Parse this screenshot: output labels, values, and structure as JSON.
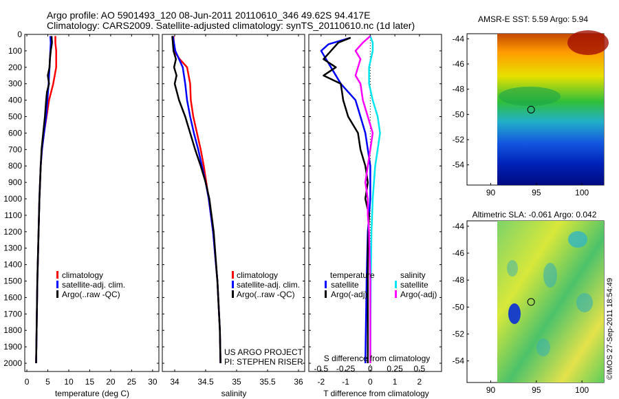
{
  "header": {
    "line1": "Argo profile: AO 5901493_120 08-Jun-2011 20110610_346 49.62S 94.417E",
    "line2": "Climatology: CARS2009. Satellite-adjusted climatology: synTS_20110610.nc (1d later)"
  },
  "credit": "©IMOS 27-Sep-2011 18:54:49",
  "colors": {
    "climatology": "#ff0000",
    "satellite": "#0000ff",
    "argo": "#000000",
    "sal_satellite": "#00e5ee",
    "sal_argo": "#ff00ff"
  },
  "chart_data": [
    {
      "id": "temperature",
      "type": "line",
      "xlabel": "temperature (deg C)",
      "ylabel": "",
      "xlim": [
        -0.5,
        31.5
      ],
      "ylim": [
        2050,
        0
      ],
      "xticks": [
        0,
        5,
        10,
        15,
        20,
        25,
        30
      ],
      "yticks": [
        0,
        100,
        200,
        300,
        400,
        500,
        600,
        700,
        800,
        900,
        1000,
        1100,
        1200,
        1300,
        1400,
        1500,
        1600,
        1700,
        1800,
        1900,
        2000
      ],
      "legend": [
        "climatology",
        "satellite-adj. clim.",
        "Argo(..raw -QC)"
      ],
      "series": [
        {
          "name": "climatology",
          "color": "#ff0000",
          "depth": [
            10,
            50,
            100,
            200,
            300,
            400,
            500,
            600,
            700,
            800,
            1000,
            1200,
            1500,
            2000
          ],
          "values": [
            6.8,
            6.8,
            7.0,
            7.0,
            6.3,
            5.3,
            4.7,
            4.1,
            3.6,
            3.3,
            3.0,
            2.8,
            2.5,
            2.2
          ]
        },
        {
          "name": "satellite-adj. clim.",
          "color": "#0000ff",
          "depth": [
            10,
            50,
            100,
            200,
            300,
            400,
            500,
            600,
            700,
            800,
            1000,
            1200,
            1500,
            2000
          ],
          "values": [
            5.6,
            5.7,
            5.6,
            5.4,
            5.2,
            4.9,
            4.6,
            4.1,
            3.6,
            3.3,
            3.0,
            2.8,
            2.5,
            2.2
          ]
        },
        {
          "name": "Argo(..raw -QC)",
          "color": "#000000",
          "depth": [
            10,
            50,
            100,
            150,
            200,
            250,
            300,
            350,
            400,
            500,
            600,
            700,
            800,
            1000,
            1200,
            1500,
            2000
          ],
          "values": [
            5.9,
            6.0,
            5.7,
            5.5,
            5.4,
            5.0,
            5.3,
            4.8,
            4.6,
            4.3,
            3.9,
            3.5,
            3.3,
            3.0,
            2.8,
            2.5,
            2.2
          ]
        }
      ]
    },
    {
      "id": "salinity",
      "type": "line",
      "xlabel": "salinity",
      "ylabel": "",
      "xlim": [
        33.8,
        36.1
      ],
      "ylim": [
        2050,
        0
      ],
      "xticks": [
        34,
        34.5,
        35,
        35.5,
        36
      ],
      "legend": [
        "climatology",
        "satellite-adj. clim.",
        "Argo(..raw -QC)"
      ],
      "annotations": [
        "US ARGO PROJECT",
        "PI: STEPHEN RISER"
      ],
      "series": [
        {
          "name": "climatology",
          "color": "#ff0000",
          "depth": [
            10,
            100,
            150,
            200,
            300,
            400,
            500,
            600,
            700,
            800,
            900,
            1000,
            1200,
            1500,
            1800,
            2000
          ],
          "values": [
            33.98,
            33.99,
            34.08,
            34.2,
            34.25,
            34.26,
            34.3,
            34.36,
            34.42,
            34.47,
            34.51,
            34.55,
            34.62,
            34.69,
            34.73,
            34.74
          ]
        },
        {
          "name": "satellite-adj. clim.",
          "color": "#0000ff",
          "depth": [
            10,
            100,
            200,
            300,
            400,
            500,
            600,
            700,
            800,
            900,
            1000,
            1200,
            1500,
            1800,
            2000
          ],
          "values": [
            33.97,
            34.01,
            34.13,
            34.17,
            34.2,
            34.25,
            34.31,
            34.38,
            34.44,
            34.5,
            34.55,
            34.62,
            34.69,
            34.73,
            34.74
          ]
        },
        {
          "name": "Argo(..raw -QC)",
          "color": "#000000",
          "depth": [
            10,
            50,
            100,
            150,
            200,
            250,
            300,
            400,
            500,
            600,
            700,
            800,
            900,
            1000,
            1200,
            1500,
            1800,
            2000
          ],
          "values": [
            33.96,
            33.97,
            33.98,
            34.02,
            33.99,
            34.03,
            34.0,
            34.07,
            34.17,
            34.25,
            34.33,
            34.42,
            34.5,
            34.56,
            34.63,
            34.69,
            34.73,
            34.74
          ]
        }
      ]
    },
    {
      "id": "difference",
      "type": "line",
      "xlabel": "T difference from climatology",
      "xlabel_top": "S difference from climatology",
      "xlim": [
        -2.5,
        2.9
      ],
      "ylim": [
        2050,
        0
      ],
      "xticks": [
        -2,
        -1,
        0,
        1,
        2
      ],
      "xticks_s": [
        "-0.5",
        "-0.25",
        "0",
        "0.25",
        "0.5"
      ],
      "legend_headers": [
        "temperature",
        "salinity"
      ],
      "legend": [
        "satellite",
        "Argo(-adj)",
        "satellite",
        "Argo(-adj)"
      ],
      "series": [
        {
          "name": "temperature satellite",
          "color": "#0000ff",
          "depth": [
            20,
            60,
            100,
            200,
            300,
            400,
            500,
            600,
            700,
            800,
            900,
            1000,
            1200,
            1500,
            2000
          ],
          "values": [
            -0.8,
            -1.7,
            -2.0,
            -1.6,
            -1.2,
            -0.6,
            -0.4,
            -0.2,
            -0.1,
            0.0,
            0.0,
            0.0,
            -0.1,
            -0.15,
            -0.2
          ]
        },
        {
          "name": "temperature Argo(-adj)",
          "color": "#000000",
          "depth": [
            20,
            50,
            100,
            150,
            200,
            250,
            300,
            400,
            500,
            600,
            700,
            800,
            900,
            1000,
            1100,
            1300,
            1500,
            2000
          ],
          "values": [
            -0.8,
            -1.3,
            -1.6,
            -1.9,
            -1.4,
            -1.9,
            -1.2,
            -1.1,
            -0.9,
            -0.5,
            -0.4,
            -0.2,
            -0.1,
            -0.2,
            -0.05,
            -0.1,
            -0.1,
            -0.1
          ]
        },
        {
          "name": "salinity satellite",
          "color": "#00e5ee",
          "depth": [
            10,
            50,
            100,
            200,
            300,
            400,
            500,
            600,
            700,
            800,
            900,
            1000,
            1200,
            1500,
            2000
          ],
          "values": [
            0.0,
            0.1,
            0.1,
            -0.05,
            -0.05,
            0.1,
            0.3,
            0.4,
            0.3,
            0.2,
            0.15,
            0.1,
            0.05,
            0.02,
            0.0
          ]
        },
        {
          "name": "salinity Argo(-adj)",
          "color": "#ff00ff",
          "depth": [
            10,
            50,
            100,
            150,
            200,
            250,
            300,
            400,
            500,
            600,
            700,
            800,
            900,
            1000,
            1100,
            1200,
            1500,
            2000
          ],
          "values": [
            0.0,
            -0.3,
            -0.6,
            -0.4,
            -0.5,
            -0.6,
            -0.4,
            -0.3,
            -0.1,
            0.1,
            0.0,
            -0.1,
            -0.2,
            -0.1,
            -0.1,
            -0.05,
            0.0,
            0.0
          ]
        }
      ]
    },
    {
      "id": "sst-map",
      "type": "heatmap",
      "title": "AMSR-E SST: 5.59 Argo: 5.94",
      "xlim": [
        87.4,
        102.4
      ],
      "ylim": [
        -55.6,
        -43.6
      ],
      "xticks": [
        90,
        95,
        100
      ],
      "yticks": [
        -44,
        -46,
        -48,
        -50,
        -52,
        -54
      ],
      "marker": {
        "lon": 94.42,
        "lat": -49.62
      }
    },
    {
      "id": "sla-map",
      "type": "heatmap",
      "title": "Altimetric SLA: -0.061 Argo: 0.042",
      "xlim": [
        87.4,
        102.4
      ],
      "ylim": [
        -55.6,
        -43.6
      ],
      "xticks": [
        90,
        95,
        100
      ],
      "yticks": [
        -44,
        -46,
        -48,
        -50,
        -52,
        -54
      ],
      "marker": {
        "lon": 94.42,
        "lat": -49.62
      }
    }
  ]
}
